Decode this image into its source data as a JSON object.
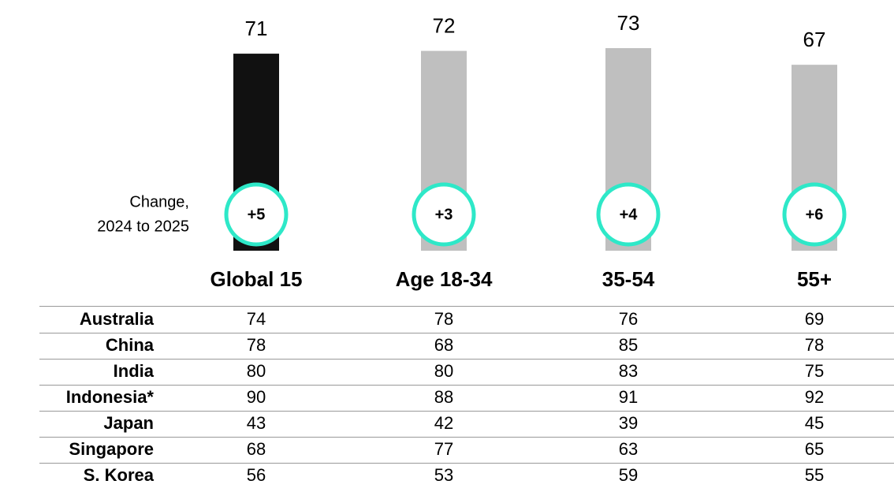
{
  "chart_data": {
    "type": "bar",
    "categories": [
      "Global 15",
      "Age 18-34",
      "35-54",
      "55+"
    ],
    "values": [
      71,
      72,
      73,
      67
    ],
    "colors": [
      "#111111",
      "#bfbfbf",
      "#bfbfbf",
      "#bfbfbf"
    ],
    "change_labels": [
      "+5",
      "+3",
      "+4",
      "+6"
    ],
    "change_ring_color": "#2ee8c8",
    "annotation": [
      "Change,",
      "2024 to 2025"
    ]
  },
  "table": {
    "rows": [
      [
        "Australia",
        "74",
        "78",
        "76",
        "69"
      ],
      [
        "China",
        "78",
        "68",
        "85",
        "78"
      ],
      [
        "India",
        "80",
        "80",
        "83",
        "75"
      ],
      [
        "Indonesia*",
        "90",
        "88",
        "91",
        "92"
      ],
      [
        "Japan",
        "43",
        "42",
        "39",
        "45"
      ],
      [
        "Singapore",
        "68",
        "77",
        "63",
        "65"
      ],
      [
        "S. Korea",
        "56",
        "53",
        "59",
        "55"
      ]
    ]
  }
}
